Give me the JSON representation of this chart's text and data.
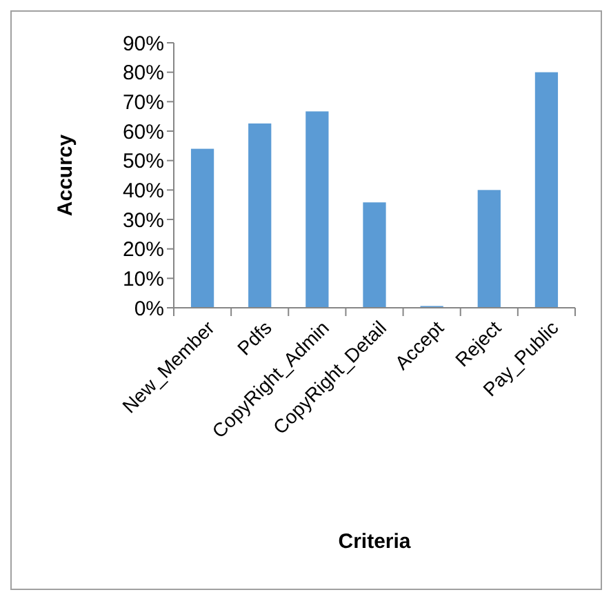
{
  "chart_data": {
    "type": "bar",
    "xlabel": "Criteria",
    "ylabel": "Accurcy",
    "categories": [
      "New_Member",
      "Pdfs",
      "CopyRight_Admin",
      "CopyRight_Detail",
      "Accept",
      "Reject",
      "Pay_Public"
    ],
    "values": [
      0.54,
      0.626,
      0.667,
      0.358,
      0.006,
      0.4,
      0.8
    ],
    "color": "#5b9bd5",
    "ylim": [
      0,
      0.9
    ],
    "yticks": [
      {
        "value": 0,
        "label": "0%"
      },
      {
        "value": 0.1,
        "label": "10%"
      },
      {
        "value": 0.2,
        "label": "20%"
      },
      {
        "value": 0.3,
        "label": "30%"
      },
      {
        "value": 0.4,
        "label": "40%"
      },
      {
        "value": 0.5,
        "label": "50%"
      },
      {
        "value": 0.6,
        "label": "60%"
      },
      {
        "value": 0.7,
        "label": "70%"
      },
      {
        "value": 0.8,
        "label": "80%"
      },
      {
        "value": 0.9,
        "label": "90%"
      }
    ],
    "grid": false
  }
}
